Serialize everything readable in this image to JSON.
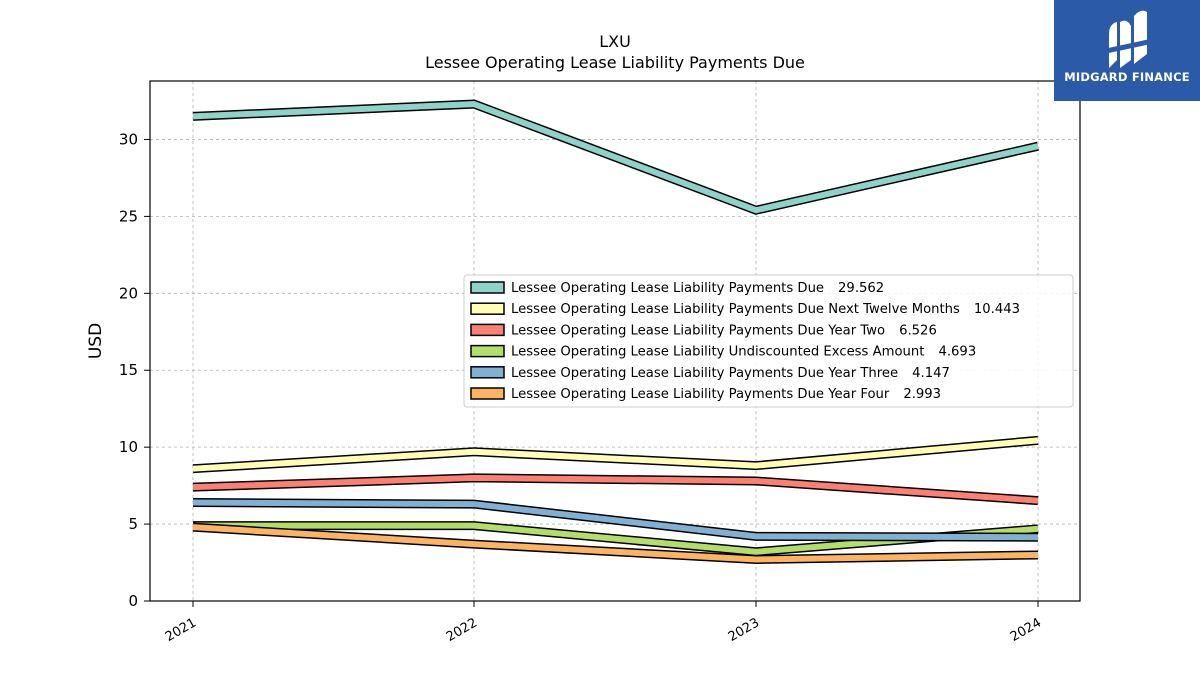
{
  "brand": {
    "name": "MIDGARD FINANCE",
    "icon": "midgard-logo-icon",
    "background_color": "#2a5aa8"
  },
  "chart_data": {
    "type": "line",
    "title": "LXU",
    "subtitle": "Lessee Operating Lease Liability Payments Due",
    "xlabel": "",
    "ylabel": "USD",
    "categories": [
      "2021",
      "2022",
      "2023",
      "2024"
    ],
    "ylim": [
      0,
      33.8
    ],
    "yticks": [
      0,
      5,
      10,
      15,
      20,
      25,
      30
    ],
    "grid": true,
    "legend_position": "center-right",
    "series": [
      {
        "name": "Lessee Operating Lease Liability Payments Due",
        "last_value_label": "29.562",
        "color": "#8dd3c7",
        "values": [
          31.5,
          32.3,
          25.4,
          29.562
        ]
      },
      {
        "name": "Lessee Operating Lease Liability Payments Due Next Twelve Months",
        "last_value_label": "10.443",
        "color": "#ffffb3",
        "values": [
          8.6,
          9.7,
          8.8,
          10.443
        ]
      },
      {
        "name": "Lessee Operating Lease Liability Payments Due Year Two",
        "last_value_label": "6.526",
        "color": "#fb8072",
        "values": [
          7.4,
          8.0,
          7.8,
          6.526
        ]
      },
      {
        "name": "Lessee Operating Lease Liability Undiscounted Excess Amount",
        "last_value_label": "4.693",
        "color": "#b3de69",
        "values": [
          4.9,
          4.9,
          3.2,
          4.693
        ]
      },
      {
        "name": "Lessee Operating Lease Liability Payments Due Year Three",
        "last_value_label": "4.147",
        "color": "#80b1d3",
        "values": [
          6.4,
          6.3,
          4.2,
          4.147
        ]
      },
      {
        "name": "Lessee Operating Lease Liability Payments Due Year Four",
        "last_value_label": "2.993",
        "color": "#fdb462",
        "values": [
          4.8,
          3.7,
          2.7,
          2.993
        ]
      }
    ]
  }
}
